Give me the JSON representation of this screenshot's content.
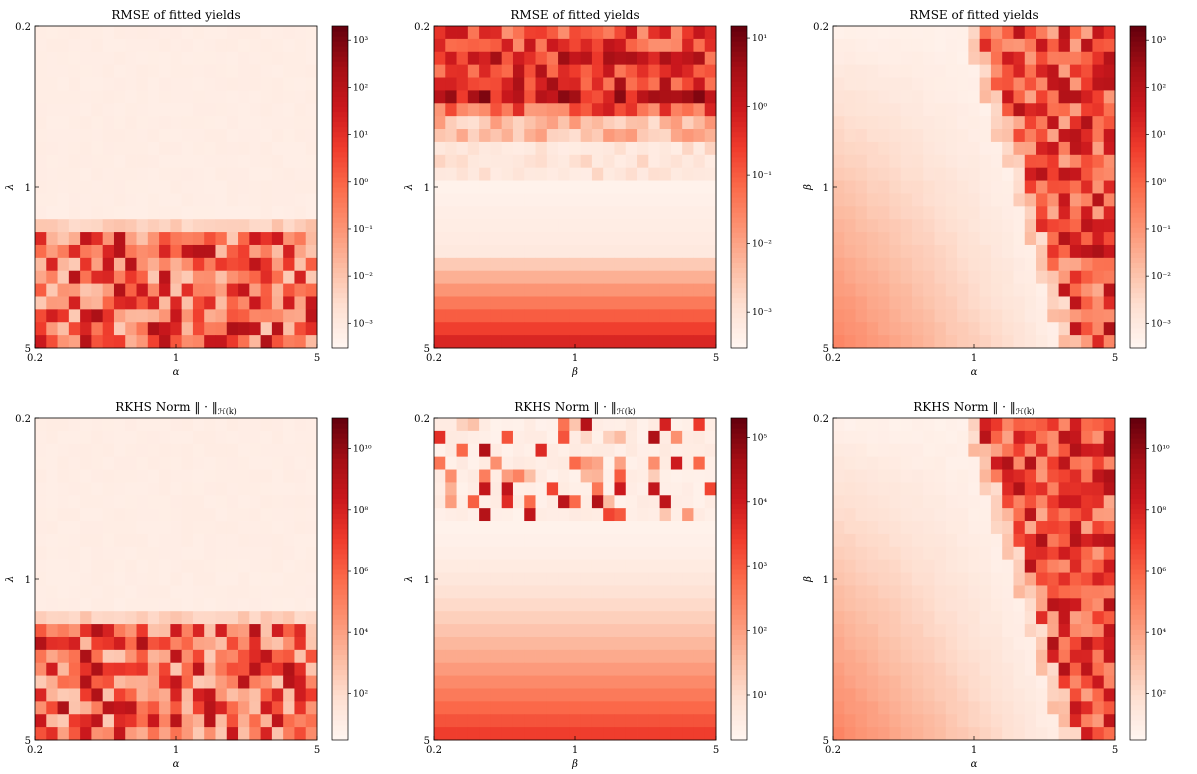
{
  "chart_data": [
    {
      "type": "heatmap",
      "title": "RMSE of fitted yields",
      "xlabel": "α",
      "ylabel": "λ",
      "x_ticks": [
        "0.2",
        "1",
        "5"
      ],
      "y_ticks": [
        "0.2",
        "1",
        "5"
      ],
      "x_scale": "log",
      "y_scale": "log",
      "xlim": [
        0.2,
        5
      ],
      "ylim": [
        0.2,
        5
      ],
      "colormap": "Reds",
      "colorbar": {
        "scale": "log",
        "ticks": [
          "10⁻³",
          "10⁻²",
          "10⁻¹",
          "10⁰",
          "10¹",
          "10²",
          "10³"
        ],
        "range": [
          0.0003,
          2000
        ]
      },
      "pattern": "lambda-threshold"
    },
    {
      "type": "heatmap",
      "title": "RMSE of fitted yields",
      "xlabel": "β",
      "ylabel": "λ",
      "x_ticks": [
        "0.2",
        "1",
        "5"
      ],
      "y_ticks": [
        "0.2",
        "1",
        "5"
      ],
      "x_scale": "log",
      "y_scale": "log",
      "xlim": [
        0.2,
        5
      ],
      "ylim": [
        0.2,
        5
      ],
      "colormap": "Reds",
      "colorbar": {
        "scale": "log",
        "ticks": [
          "10⁻³",
          "10⁻²",
          "10⁻¹",
          "10⁰",
          "10¹"
        ],
        "range": [
          0.0003,
          15
        ]
      },
      "pattern": "beta-lambda-rmse"
    },
    {
      "type": "heatmap",
      "title": "RMSE of fitted yields",
      "xlabel": "α",
      "ylabel": "β",
      "x_ticks": [
        "0.2",
        "1",
        "5"
      ],
      "y_ticks": [
        "0.2",
        "1",
        "5"
      ],
      "x_scale": "log",
      "y_scale": "log",
      "xlim": [
        0.2,
        5
      ],
      "ylim": [
        0.2,
        5
      ],
      "colormap": "Reds",
      "colorbar": {
        "scale": "log",
        "ticks": [
          "10⁻³",
          "10⁻²",
          "10⁻¹",
          "10⁰",
          "10¹",
          "10²",
          "10³"
        ],
        "range": [
          0.0003,
          2000
        ]
      },
      "pattern": "alpha-beta"
    },
    {
      "type": "heatmap",
      "title": "RKHS Norm ‖ · ‖",
      "title_subscript": "ℋ(k)",
      "xlabel": "α",
      "ylabel": "λ",
      "x_ticks": [
        "0.2",
        "1",
        "5"
      ],
      "y_ticks": [
        "0.2",
        "1",
        "5"
      ],
      "x_scale": "log",
      "y_scale": "log",
      "xlim": [
        0.2,
        5
      ],
      "ylim": [
        0.2,
        5
      ],
      "colormap": "Reds",
      "colorbar": {
        "scale": "log",
        "ticks": [
          "10²",
          "10⁴",
          "10⁶",
          "10⁸",
          "10¹⁰"
        ],
        "range": [
          3,
          100000000000
        ]
      },
      "pattern": "lambda-threshold"
    },
    {
      "type": "heatmap",
      "title": "RKHS Norm ‖ · ‖",
      "title_subscript": "ℋ(k)",
      "xlabel": "β",
      "ylabel": "λ",
      "x_ticks": [
        "0.2",
        "1",
        "5"
      ],
      "y_ticks": [
        "0.2",
        "1",
        "5"
      ],
      "x_scale": "log",
      "y_scale": "log",
      "xlim": [
        0.2,
        5
      ],
      "ylim": [
        0.2,
        5
      ],
      "colormap": "Reds",
      "colorbar": {
        "scale": "log",
        "ticks": [
          "10¹",
          "10²",
          "10³",
          "10⁴",
          "10⁵"
        ],
        "range": [
          2,
          200000
        ]
      },
      "pattern": "beta-lambda-norm"
    },
    {
      "type": "heatmap",
      "title": "RKHS Norm ‖ · ‖",
      "title_subscript": "ℋ(k)",
      "xlabel": "α",
      "ylabel": "β",
      "x_ticks": [
        "0.2",
        "1",
        "5"
      ],
      "y_ticks": [
        "0.2",
        "1",
        "5"
      ],
      "x_scale": "log",
      "y_scale": "log",
      "xlim": [
        0.2,
        5
      ],
      "ylim": [
        0.2,
        5
      ],
      "colormap": "Reds",
      "colorbar": {
        "scale": "log",
        "ticks": [
          "10²",
          "10⁴",
          "10⁶",
          "10⁸",
          "10¹⁰"
        ],
        "range": [
          3,
          100000000000
        ]
      },
      "pattern": "alpha-beta"
    }
  ]
}
